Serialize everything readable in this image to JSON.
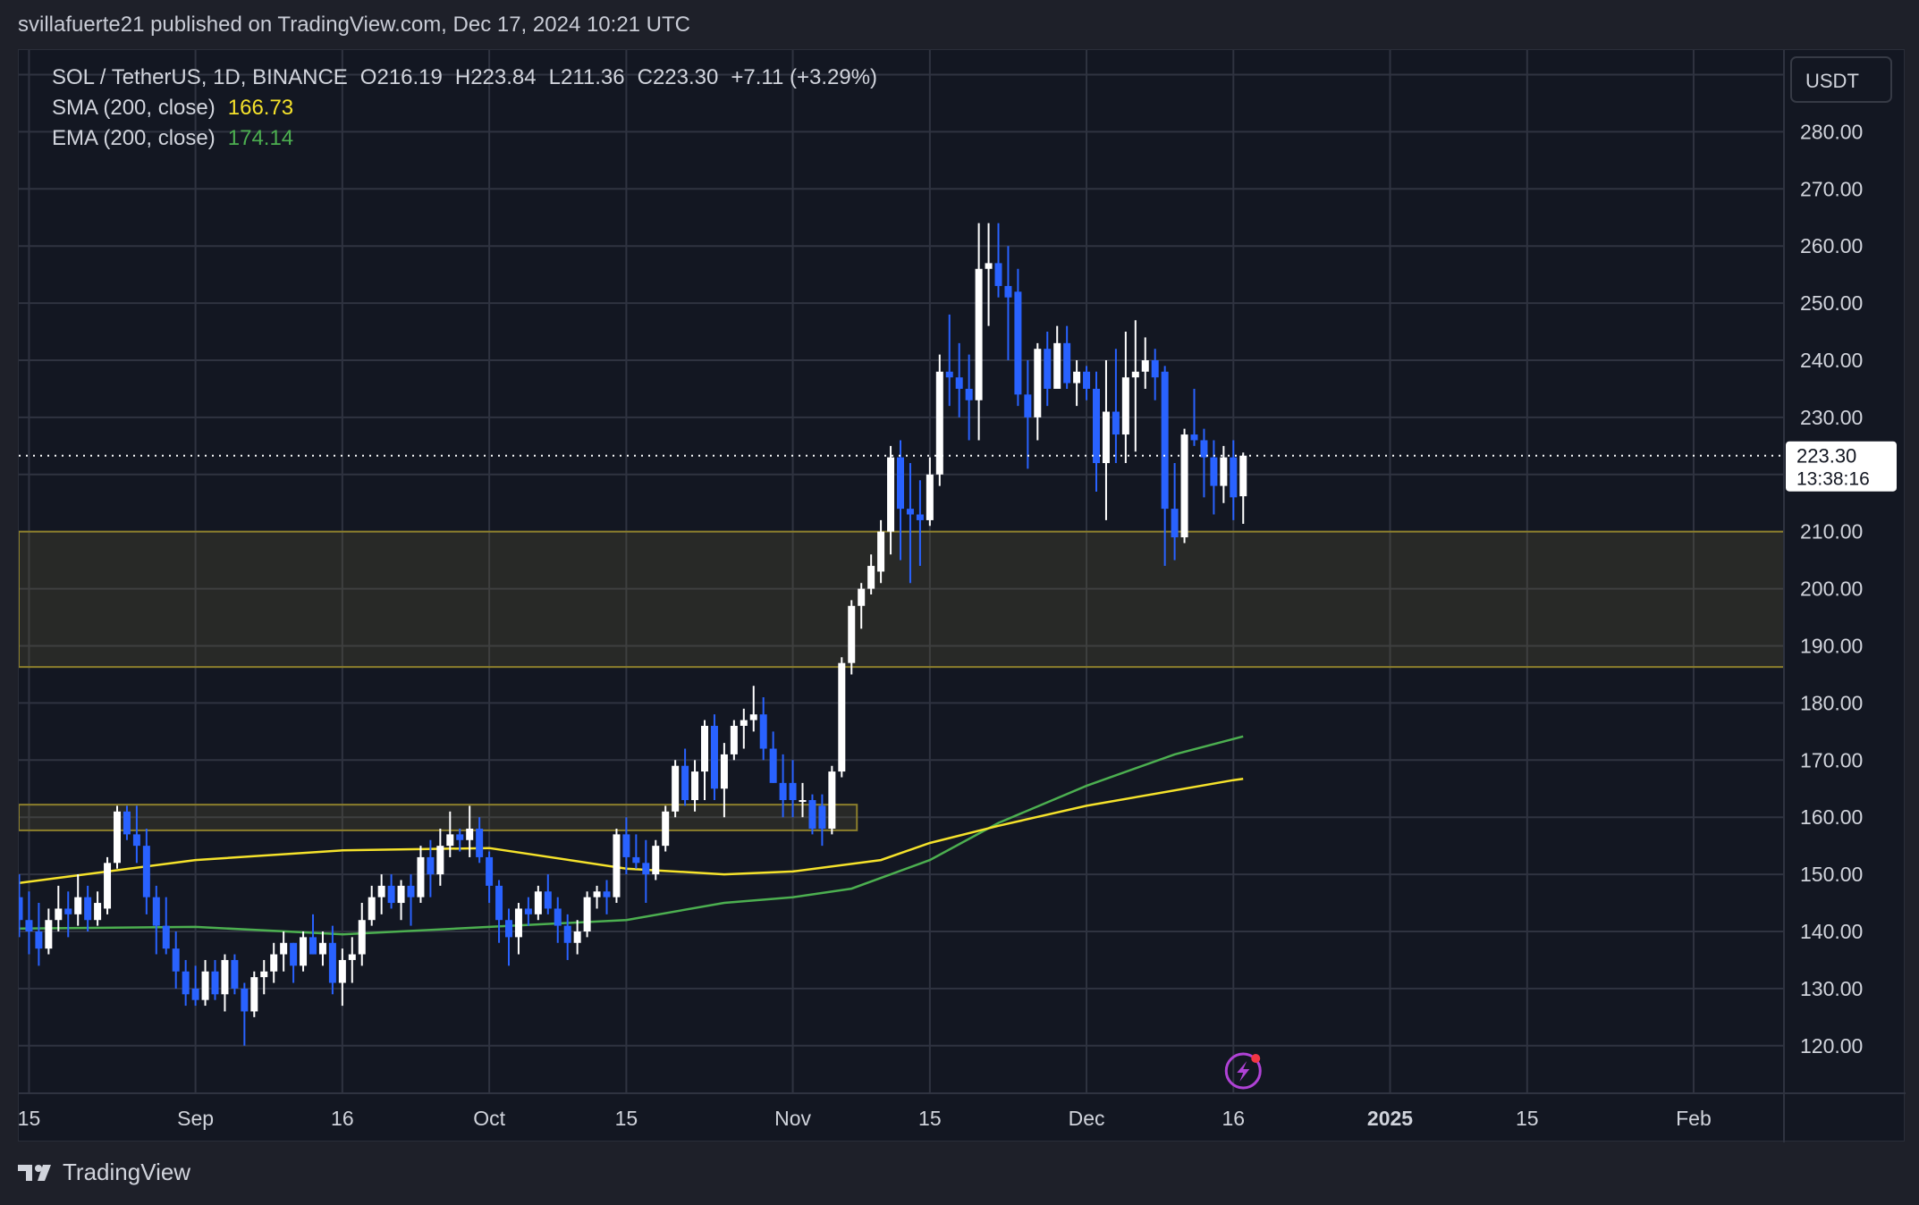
{
  "header": {
    "published": "svillafuerte21 published on TradingView.com, Dec 17, 2024 10:21 UTC"
  },
  "legend": {
    "symbol": "SOL / TetherUS, 1D, BINANCE",
    "open": "O216.19",
    "high": "H223.84",
    "low": "L211.36",
    "close": "C223.30",
    "change": "+7.11 (+3.29%)",
    "sma_label": "SMA (200, close)",
    "sma_value": "166.73",
    "ema_label": "EMA (200, close)",
    "ema_value": "174.14"
  },
  "price_axis": {
    "currency": "USDT",
    "last_price": "223.30",
    "countdown": "13:38:16"
  },
  "footer": {
    "brand": "TradingView"
  },
  "colors": {
    "up": "#ffffff",
    "down": "#2962ff",
    "sma": "#f5e22b",
    "ema": "#4caf50",
    "zone": "#8c7f2c"
  },
  "chart_data": {
    "type": "candlestick",
    "title": "SOL / TetherUS, 1D, BINANCE",
    "ylim": [
      115,
      290
    ],
    "y_ticks": [
      "280.00",
      "270.00",
      "260.00",
      "250.00",
      "240.00",
      "230.00",
      "210.00",
      "200.00",
      "190.00",
      "180.00",
      "170.00",
      "160.00",
      "150.00",
      "140.00",
      "130.00",
      "120.00"
    ],
    "x_ticks": [
      {
        "label": "15",
        "day": 1
      },
      {
        "label": "Sep",
        "day": 18
      },
      {
        "label": "16",
        "day": 33
      },
      {
        "label": "Oct",
        "day": 48
      },
      {
        "label": "15",
        "day": 62
      },
      {
        "label": "Nov",
        "day": 79
      },
      {
        "label": "15",
        "day": 93
      },
      {
        "label": "Dec",
        "day": 109
      },
      {
        "label": "16",
        "day": 124
      },
      {
        "label": "2025",
        "day": 140
      },
      {
        "label": "15",
        "day": 154
      },
      {
        "label": "Feb",
        "day": 171
      }
    ],
    "candles_ohlc": [
      [
        146,
        150,
        139,
        142
      ],
      [
        142,
        147,
        136,
        140
      ],
      [
        140,
        145,
        134,
        137
      ],
      [
        137,
        144,
        136,
        142
      ],
      [
        142,
        148,
        140,
        144
      ],
      [
        144,
        147,
        139,
        143
      ],
      [
        143,
        150,
        141,
        146
      ],
      [
        146,
        148,
        140,
        142
      ],
      [
        142,
        147,
        141,
        145
      ],
      [
        144,
        153,
        143,
        152
      ],
      [
        152,
        162,
        151,
        161
      ],
      [
        161,
        162,
        156,
        157
      ],
      [
        157,
        162,
        152,
        155
      ],
      [
        155,
        158,
        143,
        146
      ],
      [
        146,
        148,
        136,
        141
      ],
      [
        141,
        146,
        136,
        137
      ],
      [
        137,
        140,
        130,
        133
      ],
      [
        133,
        135,
        127,
        129
      ],
      [
        130,
        134,
        127,
        128
      ],
      [
        128,
        135,
        127,
        133
      ],
      [
        133,
        135,
        128,
        129
      ],
      [
        129,
        136,
        126,
        135
      ],
      [
        135,
        136,
        129,
        130
      ],
      [
        130,
        131,
        120,
        126
      ],
      [
        126,
        133,
        125,
        132
      ],
      [
        132,
        135,
        129,
        133
      ],
      [
        133,
        138,
        131,
        136
      ],
      [
        136,
        140,
        133,
        138
      ],
      [
        138,
        138,
        131,
        134
      ],
      [
        134,
        140,
        133,
        139
      ],
      [
        139,
        143,
        136,
        136
      ],
      [
        136,
        140,
        134,
        138
      ],
      [
        138,
        141,
        129,
        131
      ],
      [
        131,
        137,
        127,
        135
      ],
      [
        135,
        139,
        131,
        136
      ],
      [
        136,
        145,
        134,
        142
      ],
      [
        142,
        148,
        141,
        146
      ],
      [
        146,
        150,
        143,
        148
      ],
      [
        148,
        150,
        144,
        145
      ],
      [
        145,
        149,
        142,
        148
      ],
      [
        148,
        150,
        141,
        146
      ],
      [
        146,
        155,
        145,
        153
      ],
      [
        153,
        156,
        146,
        150
      ],
      [
        150,
        158,
        148,
        155
      ],
      [
        155,
        161,
        153,
        157
      ],
      [
        157,
        158,
        154,
        156
      ],
      [
        156,
        162,
        153,
        158
      ],
      [
        158,
        160,
        152,
        153
      ],
      [
        153,
        154,
        145,
        148
      ],
      [
        148,
        149,
        138,
        142
      ],
      [
        142,
        144,
        134,
        139
      ],
      [
        139,
        145,
        136,
        144
      ],
      [
        144,
        146,
        141,
        143
      ],
      [
        143,
        148,
        142,
        147
      ],
      [
        147,
        150,
        143,
        144
      ],
      [
        144,
        146,
        138,
        141
      ],
      [
        141,
        143,
        135,
        138
      ],
      [
        138,
        142,
        136,
        140
      ],
      [
        140,
        147,
        139,
        146
      ],
      [
        146,
        148,
        144,
        147
      ],
      [
        147,
        149,
        143,
        146
      ],
      [
        146,
        158,
        145,
        157
      ],
      [
        157,
        160,
        150,
        153
      ],
      [
        153,
        157,
        151,
        152
      ],
      [
        152,
        156,
        145,
        150
      ],
      [
        150,
        156,
        149,
        155
      ],
      [
        155,
        162,
        154,
        161
      ],
      [
        161,
        170,
        160,
        169
      ],
      [
        169,
        172,
        162,
        163
      ],
      [
        163,
        170,
        161,
        168
      ],
      [
        168,
        177,
        163,
        176
      ],
      [
        176,
        178,
        163,
        165
      ],
      [
        165,
        173,
        160,
        171
      ],
      [
        171,
        177,
        170,
        176
      ],
      [
        176,
        179,
        172,
        177
      ],
      [
        177,
        183,
        175,
        178
      ],
      [
        178,
        181,
        170,
        172
      ],
      [
        172,
        175,
        166,
        166
      ],
      [
        166,
        171,
        160,
        163
      ],
      [
        166,
        170,
        160,
        163
      ],
      [
        163,
        166,
        160,
        163
      ],
      [
        163,
        164,
        157,
        158
      ],
      [
        162,
        164,
        155,
        158
      ],
      [
        158,
        169,
        157,
        168
      ],
      [
        168,
        188,
        167,
        187
      ],
      [
        187,
        198,
        185,
        197
      ],
      [
        197,
        201,
        193,
        200
      ],
      [
        200,
        206,
        199,
        204
      ],
      [
        203,
        212,
        201,
        210
      ],
      [
        210,
        225,
        206,
        223
      ],
      [
        223,
        226,
        205,
        214
      ],
      [
        214,
        222,
        201,
        213
      ],
      [
        213,
        219,
        204,
        212
      ],
      [
        212,
        223,
        211,
        220
      ],
      [
        220,
        241,
        218,
        238
      ],
      [
        238,
        248,
        232,
        237
      ],
      [
        237,
        243,
        230,
        235
      ],
      [
        235,
        241,
        226,
        233
      ],
      [
        233,
        264,
        226,
        256
      ],
      [
        256,
        264,
        246,
        257
      ],
      [
        257,
        264,
        251,
        253
      ],
      [
        253,
        260,
        240,
        251
      ],
      [
        252,
        256,
        232,
        234
      ],
      [
        234,
        240,
        221,
        230
      ],
      [
        230,
        243,
        226,
        242
      ],
      [
        242,
        245,
        232,
        235
      ],
      [
        235,
        246,
        236,
        243
      ],
      [
        243,
        246,
        235,
        236
      ],
      [
        236,
        240,
        232,
        238
      ],
      [
        238,
        239,
        233,
        235
      ],
      [
        235,
        238,
        217,
        222
      ],
      [
        222,
        240,
        212,
        231
      ],
      [
        231,
        242,
        222,
        227
      ],
      [
        227,
        245,
        222,
        237
      ],
      [
        237,
        247,
        224,
        238
      ],
      [
        238,
        244,
        235,
        240
      ],
      [
        240,
        242,
        233,
        237
      ],
      [
        238,
        239,
        204,
        214
      ],
      [
        214,
        222,
        205,
        209
      ],
      [
        209,
        228,
        208,
        227
      ],
      [
        227,
        235,
        225,
        226
      ],
      [
        226,
        228,
        216,
        223
      ],
      [
        223,
        226,
        213,
        218
      ],
      [
        218,
        225,
        215,
        223
      ],
      [
        223,
        226,
        212,
        216
      ],
      [
        216.19,
        223.84,
        211.36,
        223.3
      ]
    ],
    "sma_200": [
      [
        0,
        148.5
      ],
      [
        18,
        152.5
      ],
      [
        33,
        154.2
      ],
      [
        48,
        154.6
      ],
      [
        62,
        151
      ],
      [
        72,
        150
      ],
      [
        79,
        150.5
      ],
      [
        88,
        152.5
      ],
      [
        93,
        155.5
      ],
      [
        100,
        158.5
      ],
      [
        109,
        162
      ],
      [
        124,
        166.5
      ],
      [
        125,
        166.73
      ]
    ],
    "ema_200": [
      [
        0,
        140.5
      ],
      [
        18,
        140.8
      ],
      [
        33,
        139.5
      ],
      [
        48,
        140.8
      ],
      [
        62,
        142
      ],
      [
        72,
        145
      ],
      [
        79,
        146
      ],
      [
        85,
        147.5
      ],
      [
        93,
        152.5
      ],
      [
        100,
        159
      ],
      [
        109,
        165.5
      ],
      [
        118,
        171
      ],
      [
        125,
        174.14
      ]
    ],
    "zones": [
      {
        "top": 210,
        "bottom": 186.3,
        "from_day": -1,
        "to_day": null
      },
      {
        "top": 162.2,
        "bottom": 157.7,
        "from_day": -1,
        "to_day": 85
      }
    ],
    "last_price": 223.3
  }
}
